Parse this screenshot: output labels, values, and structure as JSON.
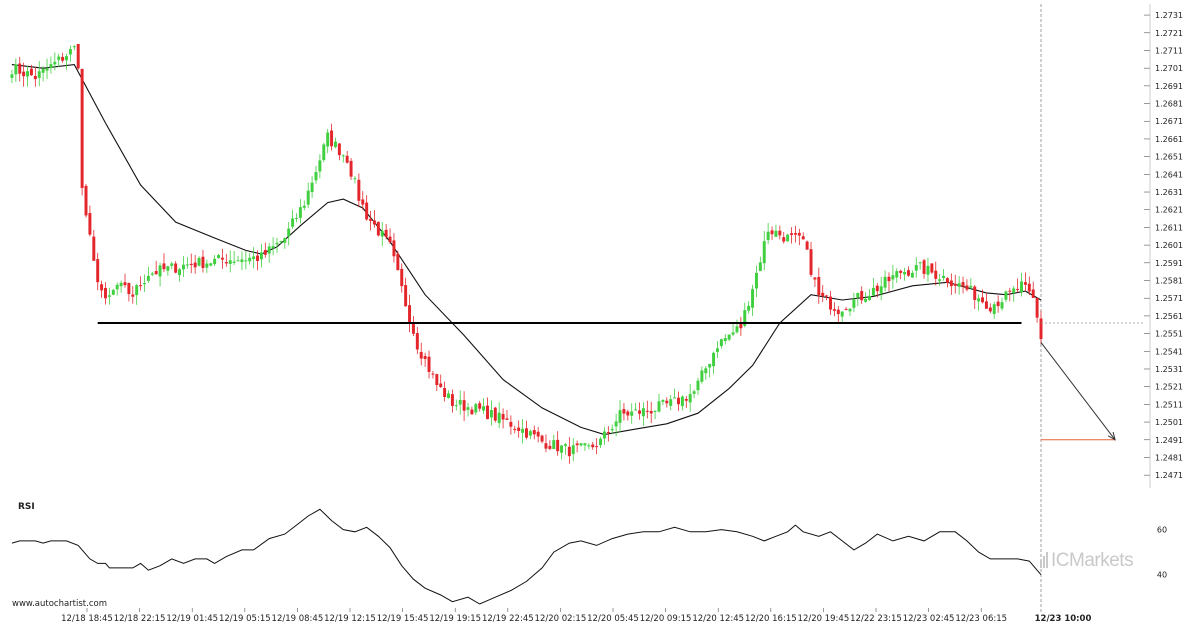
{
  "chart_data": [
    {
      "type": "candlestick",
      "title": "",
      "xlabel": "",
      "ylabel": "",
      "ylim": [
        1.2466,
        1.2735
      ],
      "y_ticks": [
        "1.2731",
        "1.2721",
        "1.2711",
        "1.2701",
        "1.2691",
        "1.2681",
        "1.2671",
        "1.2661",
        "1.2651",
        "1.2641",
        "1.2631",
        "1.2621",
        "1.2611",
        "1.2601",
        "1.2591",
        "1.2581",
        "1.2571",
        "1.2561",
        "1.2551",
        "1.2541",
        "1.2531",
        "1.2521",
        "1.2511",
        "1.2501",
        "1.2491",
        "1.2481",
        "1.2471"
      ],
      "x_ticks": [
        "12/18 18:45",
        "12/18 22:15",
        "12/19 01:45",
        "12/19 05:15",
        "12/19 08:45",
        "12/19 12:15",
        "12/19 15:45",
        "12/19 19:15",
        "12/19 22:45",
        "12/20 02:15",
        "12/20 05:45",
        "12/20 09:15",
        "12/20 12:45",
        "12/20 16:15",
        "12/20 19:45",
        "12/22 23:15",
        "12/23 02:45",
        "12/23 06:15"
      ],
      "current_time_label": "12/23 10:00",
      "price_path": [
        [
          0,
          1.2701
        ],
        [
          6,
          1.2696
        ],
        [
          10,
          1.2702
        ],
        [
          16,
          1.2712
        ],
        [
          17,
          1.2704
        ],
        [
          18,
          1.2632
        ],
        [
          21,
          1.259
        ],
        [
          24,
          1.2568
        ],
        [
          27,
          1.2578
        ],
        [
          31,
          1.2573
        ],
        [
          35,
          1.2585
        ],
        [
          45,
          1.259
        ],
        [
          55,
          1.2593
        ],
        [
          64,
          1.2594
        ],
        [
          70,
          1.2605
        ],
        [
          75,
          1.2625
        ],
        [
          81,
          1.2662
        ],
        [
          86,
          1.265
        ],
        [
          89,
          1.2628
        ],
        [
          91,
          1.2618
        ],
        [
          97,
          1.26
        ],
        [
          101,
          1.2568
        ],
        [
          104,
          1.2545
        ],
        [
          109,
          1.2522
        ],
        [
          113,
          1.2512
        ],
        [
          121,
          1.2507
        ],
        [
          130,
          1.2498
        ],
        [
          136,
          1.249
        ],
        [
          143,
          1.2485
        ],
        [
          148,
          1.2486
        ],
        [
          151,
          1.249
        ],
        [
          156,
          1.2505
        ],
        [
          164,
          1.2508
        ],
        [
          170,
          1.2512
        ],
        [
          175,
          1.2518
        ],
        [
          181,
          1.2545
        ],
        [
          187,
          1.2555
        ],
        [
          191,
          1.2585
        ],
        [
          194,
          1.261
        ],
        [
          199,
          1.2605
        ],
        [
          203,
          1.2603
        ],
        [
          207,
          1.2572
        ],
        [
          212,
          1.2565
        ],
        [
          218,
          1.2572
        ],
        [
          223,
          1.2578
        ],
        [
          228,
          1.2586
        ],
        [
          233,
          1.2588
        ],
        [
          240,
          1.2582
        ],
        [
          245,
          1.2576
        ],
        [
          251,
          1.2567
        ],
        [
          256,
          1.2573
        ],
        [
          259,
          1.2578
        ],
        [
          262,
          1.257
        ],
        [
          264,
          1.2549
        ]
      ],
      "moving_average": [
        [
          0,
          1.2703
        ],
        [
          8,
          1.2701
        ],
        [
          16,
          1.2703
        ],
        [
          24,
          1.267
        ],
        [
          33,
          1.2635
        ],
        [
          42,
          1.2614
        ],
        [
          52,
          1.2605
        ],
        [
          60,
          1.2598
        ],
        [
          64,
          1.2596
        ],
        [
          68,
          1.26
        ],
        [
          74,
          1.2612
        ],
        [
          81,
          1.2625
        ],
        [
          85,
          1.2627
        ],
        [
          90,
          1.2622
        ],
        [
          97,
          1.2603
        ],
        [
          106,
          1.2573
        ],
        [
          116,
          1.255
        ],
        [
          126,
          1.2525
        ],
        [
          136,
          1.2509
        ],
        [
          146,
          1.2498
        ],
        [
          152,
          1.2494
        ],
        [
          160,
          1.2497
        ],
        [
          168,
          1.25
        ],
        [
          176,
          1.2506
        ],
        [
          184,
          1.252
        ],
        [
          190,
          1.2533
        ],
        [
          197,
          1.2557
        ],
        [
          205,
          1.2573
        ],
        [
          213,
          1.257
        ],
        [
          221,
          1.2572
        ],
        [
          231,
          1.2578
        ],
        [
          240,
          1.258
        ],
        [
          250,
          1.2574
        ],
        [
          255,
          1.2573
        ],
        [
          260,
          1.2575
        ],
        [
          264,
          1.257
        ]
      ],
      "support_level": 1.2557,
      "support_range": [
        22,
        259
      ],
      "forecast": {
        "from": [
          264,
          1.2546
        ],
        "to": [
          283,
          1.2491
        ]
      },
      "target_level": 1.2491,
      "target_range": [
        264,
        283
      ],
      "current_bar": 264,
      "total_bars": 284,
      "colors": {
        "up": "#3fcf3f",
        "down": "#e3262c",
        "target_line": "#e8643a",
        "forecast_arrow": "#333333",
        "support": "#000000",
        "grid": "#dddddd"
      }
    },
    {
      "type": "line",
      "title": "RSI",
      "xlabel": "",
      "ylabel": "",
      "ylim": [
        27,
        74
      ],
      "y_ticks": [
        "60",
        "40"
      ],
      "series": [
        {
          "values": [
            [
              0,
              54
            ],
            [
              2,
              55
            ],
            [
              6,
              55
            ],
            [
              8,
              54
            ],
            [
              10,
              55
            ],
            [
              14,
              55
            ],
            [
              17,
              53
            ],
            [
              20,
              47
            ],
            [
              22,
              45
            ],
            [
              24,
              45
            ],
            [
              25,
              43
            ],
            [
              31,
              43
            ],
            [
              33,
              45
            ],
            [
              35,
              42
            ],
            [
              38,
              44
            ],
            [
              41,
              47
            ],
            [
              44,
              45
            ],
            [
              47,
              47
            ],
            [
              50,
              47
            ],
            [
              52,
              45
            ],
            [
              55,
              48
            ],
            [
              59,
              51
            ],
            [
              62,
              51
            ],
            [
              66,
              56
            ],
            [
              70,
              58
            ],
            [
              73,
              62
            ],
            [
              76,
              66
            ],
            [
              79,
              69
            ],
            [
              82,
              64
            ],
            [
              85,
              60
            ],
            [
              88,
              59
            ],
            [
              91,
              61
            ],
            [
              94,
              57
            ],
            [
              97,
              52
            ],
            [
              100,
              44
            ],
            [
              103,
              38
            ],
            [
              106,
              34
            ],
            [
              110,
              31
            ],
            [
              113,
              28
            ],
            [
              117,
              30
            ],
            [
              120,
              27
            ],
            [
              124,
              30
            ],
            [
              128,
              33
            ],
            [
              132,
              37
            ],
            [
              136,
              43
            ],
            [
              139,
              50
            ],
            [
              143,
              54
            ],
            [
              146,
              55
            ],
            [
              150,
              53
            ],
            [
              154,
              56
            ],
            [
              158,
              58
            ],
            [
              162,
              59
            ],
            [
              166,
              59
            ],
            [
              170,
              61
            ],
            [
              174,
              59
            ],
            [
              178,
              59
            ],
            [
              182,
              60
            ],
            [
              186,
              59
            ],
            [
              190,
              57
            ],
            [
              193,
              55
            ],
            [
              196,
              57
            ],
            [
              199,
              59
            ],
            [
              201,
              62
            ],
            [
              203,
              59
            ],
            [
              207,
              57
            ],
            [
              210,
              59
            ],
            [
              213,
              55
            ],
            [
              216,
              51
            ],
            [
              219,
              54
            ],
            [
              222,
              58
            ],
            [
              226,
              55
            ],
            [
              230,
              57
            ],
            [
              234,
              55
            ],
            [
              238,
              59
            ],
            [
              242,
              59
            ],
            [
              245,
              55
            ],
            [
              248,
              50
            ],
            [
              251,
              47
            ],
            [
              254,
              47
            ],
            [
              258,
              47
            ],
            [
              261,
              46
            ],
            [
              264,
              40
            ]
          ]
        }
      ]
    }
  ],
  "watermark_text": "www.autochartist.com",
  "logo": {
    "prefix": "IC",
    "suffix": "Markets",
    "color": "#c9c9c9"
  }
}
